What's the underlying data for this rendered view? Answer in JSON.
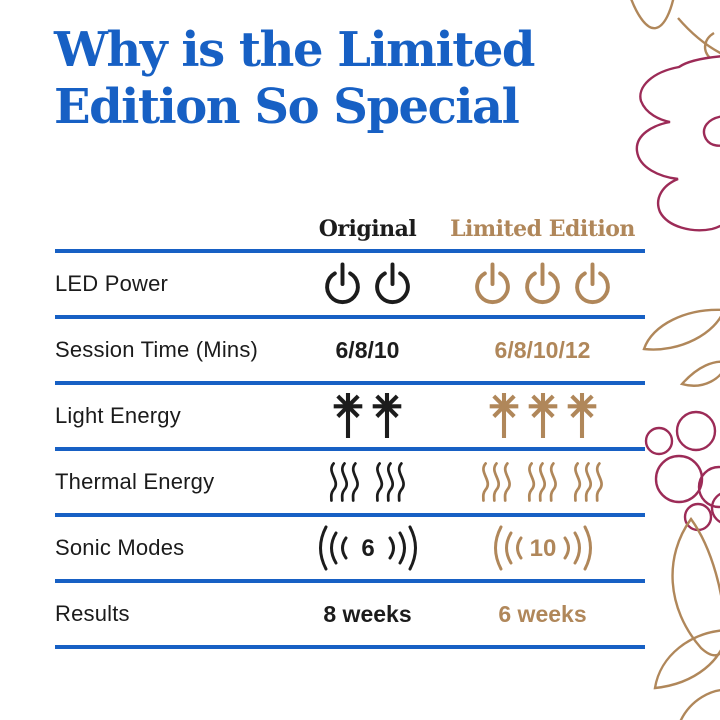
{
  "title": {
    "line1": "Why is the Limited",
    "line2": "Edition So Special"
  },
  "colors": {
    "blue": "#1760C4",
    "gold": "#B0875A",
    "maroon": "#9C2B57",
    "ink": "#1c1c1c"
  },
  "table": {
    "columns": {
      "original": "Original",
      "limited": "Limited Edition"
    },
    "rows": [
      {
        "label": "LED Power",
        "type": "icons",
        "icon": "power-icon",
        "original_count": 2,
        "limited_count": 3
      },
      {
        "label": "Session Time (Mins)",
        "type": "text",
        "original": "6/8/10",
        "limited": "6/8/10/12"
      },
      {
        "label": "Light Energy",
        "type": "icons",
        "icon": "light-burst-icon",
        "original_count": 2,
        "limited_count": 3
      },
      {
        "label": "Thermal Energy",
        "type": "icons",
        "icon": "heat-waves-icon",
        "original_count": 2,
        "limited_count": 3
      },
      {
        "label": "Sonic Modes",
        "type": "sonic",
        "original_value": "6",
        "limited_value": "10"
      },
      {
        "label": "Results",
        "type": "text",
        "original": "8 weeks",
        "limited": "6 weeks"
      }
    ]
  },
  "decoration": {
    "description": "outline flowers, leaves and berries along right edge",
    "gold_outline": "#B0875A",
    "maroon_outline": "#9C2B57"
  }
}
